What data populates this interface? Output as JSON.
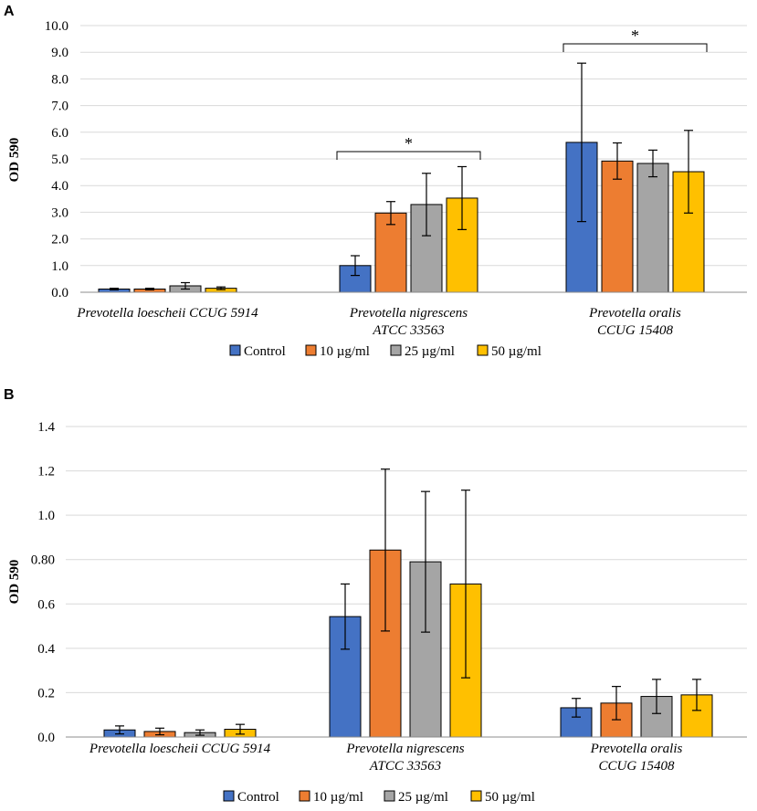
{
  "colors": [
    "#4472c4",
    "#ed7d31",
    "#a5a5a5",
    "#ffc000"
  ],
  "legend": [
    "Control",
    "10 µg/ml",
    "25 µg/ml",
    "50 µg/ml"
  ],
  "chart_data": [
    {
      "panel": "A",
      "type": "bar",
      "ylabel": "OD 590",
      "ylim": [
        0,
        10
      ],
      "yticks": [
        "0.0",
        "1.0",
        "2.0",
        "3.0",
        "4.0",
        "5.0",
        "6.0",
        "7.0",
        "8.0",
        "9.0",
        "10.0"
      ],
      "categories": [
        [
          "Prevotella loescheii CCUG 5914"
        ],
        [
          "Prevotella nigrescens",
          "ATCC  33563"
        ],
        [
          "Prevotella oralis",
          "CCUG 15408"
        ]
      ],
      "series": [
        {
          "name": "Control",
          "values": [
            0.12,
            1.0,
            5.62
          ],
          "errors": [
            0.03,
            0.37,
            2.97
          ]
        },
        {
          "name": "10 µg/ml",
          "values": [
            0.12,
            2.97,
            4.92
          ],
          "errors": [
            0.03,
            0.43,
            0.68
          ]
        },
        {
          "name": "25 µg/ml",
          "values": [
            0.24,
            3.29,
            4.83
          ],
          "errors": [
            0.12,
            1.17,
            0.5
          ]
        },
        {
          "name": "50 µg/ml",
          "values": [
            0.15,
            3.53,
            4.52
          ],
          "errors": [
            0.05,
            1.18,
            1.55
          ]
        }
      ],
      "significance": [
        {
          "category": 1,
          "label": "*"
        },
        {
          "category": 2,
          "label": "*"
        }
      ]
    },
    {
      "panel": "B",
      "type": "bar",
      "ylabel": "OD 590",
      "ylim": [
        0,
        1.4
      ],
      "yticks": [
        "0.0",
        "0.2",
        "0.4",
        "0.6",
        "0.80",
        "1.0",
        "1.2",
        "1.4"
      ],
      "categories": [
        [
          "Prevotella loescheii CCUG 5914"
        ],
        [
          "Prevotella nigrescens",
          "ATCC  33563"
        ],
        [
          "Prevotella oralis",
          "CCUG 15408"
        ]
      ],
      "series": [
        {
          "name": "Control",
          "values": [
            0.032,
            0.543,
            0.132
          ],
          "errors": [
            0.018,
            0.147,
            0.042
          ]
        },
        {
          "name": "10 µg/ml",
          "values": [
            0.025,
            0.843,
            0.153
          ],
          "errors": [
            0.015,
            0.365,
            0.075
          ]
        },
        {
          "name": "25 µg/ml",
          "values": [
            0.02,
            0.79,
            0.183
          ],
          "errors": [
            0.012,
            0.317,
            0.077
          ]
        },
        {
          "name": "50 µg/ml",
          "values": [
            0.035,
            0.69,
            0.19
          ],
          "errors": [
            0.022,
            0.423,
            0.07
          ]
        }
      ],
      "significance": []
    }
  ]
}
